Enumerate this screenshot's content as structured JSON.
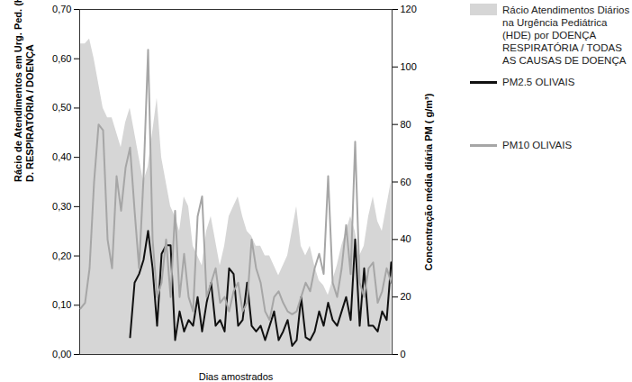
{
  "chart_data": {
    "type": "line",
    "xlabel": "Dias amostrados",
    "ylabel": "Rácio de Atendimentos em Urg. Ped. (HDE)\nD. RESPIRATÓRIA / DOENÇA",
    "y2label": "Concentração média diária PM ( g/m³)",
    "legend": "right",
    "tick_labels": "y",
    "categories": [
      null,
      null,
      null,
      null,
      null,
      null,
      null,
      null,
      null,
      null,
      null,
      null,
      null,
      null,
      null,
      null,
      null,
      null,
      null,
      null,
      null,
      null,
      null,
      null,
      null,
      null,
      null,
      null,
      null,
      null,
      null,
      null,
      null,
      null,
      null,
      null,
      null,
      null,
      null,
      null,
      null,
      null,
      null,
      null,
      null,
      null,
      null,
      null,
      null,
      null,
      null,
      null,
      null,
      null,
      null,
      null,
      null,
      null,
      null,
      null,
      null,
      null,
      null,
      null,
      null,
      null,
      null,
      null,
      null,
      null
    ],
    "ylim": [
      0,
      0.7
    ],
    "yticks": [
      {
        "value": 0,
        "label": "0,00"
      },
      {
        "value": 0.1,
        "label": "0,10"
      },
      {
        "value": 0.2,
        "label": "0,20"
      },
      {
        "value": 0.3,
        "label": "0,30"
      },
      {
        "value": 0.4,
        "label": "0,40"
      },
      {
        "value": 0.5,
        "label": "0,50"
      },
      {
        "value": 0.6,
        "label": "0,60"
      },
      {
        "value": 0.7,
        "label": "0,70"
      }
    ],
    "y2lim": [
      0,
      120
    ],
    "y2ticks": [
      0,
      20,
      40,
      60,
      80,
      100,
      120
    ],
    "series": [
      {
        "name": "Rácio Atendimentos Diários na Urgência Pediátrica (HDE) por DOENÇA RESPIRATÓRIA / TODAS AS CAUSAS DE DOENÇA",
        "type": "area",
        "color": "#d6d6d6",
        "values": [
          0.63,
          0.63,
          0.64,
          0.6,
          0.55,
          0.5,
          0.48,
          0.48,
          0.45,
          0.42,
          0.47,
          0.5,
          0.45,
          0.4,
          0.35,
          0.38,
          0.45,
          0.52,
          0.4,
          0.35,
          0.3,
          0.28,
          0.25,
          0.32,
          0.3,
          0.22,
          0.2,
          0.18,
          0.25,
          0.28,
          0.23,
          0.18,
          0.22,
          0.28,
          0.3,
          0.32,
          0.28,
          0.25,
          0.24,
          0.22,
          0.22,
          0.2,
          0.2,
          0.18,
          0.16,
          0.18,
          0.2,
          0.25,
          0.3,
          0.22,
          0.2,
          0.22,
          0.18,
          0.15,
          0.14,
          0.12,
          0.15,
          0.18,
          0.22,
          0.25,
          0.28,
          0.25,
          0.2,
          0.22,
          0.28,
          0.32,
          0.27,
          0.25,
          0.3,
          0.35
        ]
      },
      {
        "name": "PM2.5 OLIVAIS",
        "type": "line",
        "axis": "y2",
        "color": "#111111",
        "values": [
          null,
          null,
          null,
          null,
          null,
          null,
          null,
          null,
          null,
          null,
          null,
          6,
          25,
          28,
          33,
          43,
          30,
          10,
          35,
          38,
          38,
          5,
          15,
          8,
          12,
          10,
          20,
          8,
          18,
          25,
          10,
          12,
          8,
          30,
          28,
          10,
          12,
          25,
          10,
          8,
          10,
          5,
          10,
          15,
          5,
          8,
          12,
          3,
          5,
          20,
          6,
          5,
          8,
          15,
          10,
          18,
          12,
          10,
          15,
          20,
          12,
          40,
          10,
          30,
          10,
          10,
          8,
          15,
          12,
          32
        ]
      },
      {
        "name": "PM10 OLIVAIS",
        "type": "line",
        "axis": "y2",
        "color": "#a6a6a6",
        "values": [
          16,
          18,
          30,
          60,
          80,
          78,
          40,
          30,
          62,
          50,
          65,
          72,
          50,
          30,
          62,
          106,
          40,
          20,
          25,
          40,
          20,
          50,
          20,
          35,
          20,
          15,
          48,
          55,
          20,
          25,
          30,
          18,
          20,
          15,
          22,
          25,
          15,
          18,
          40,
          30,
          25,
          15,
          12,
          20,
          22,
          18,
          15,
          14,
          15,
          20,
          25,
          22,
          30,
          35,
          28,
          62,
          25,
          20,
          30,
          45,
          28,
          74,
          25,
          20,
          30,
          32,
          18,
          22,
          30,
          25
        ]
      }
    ]
  }
}
